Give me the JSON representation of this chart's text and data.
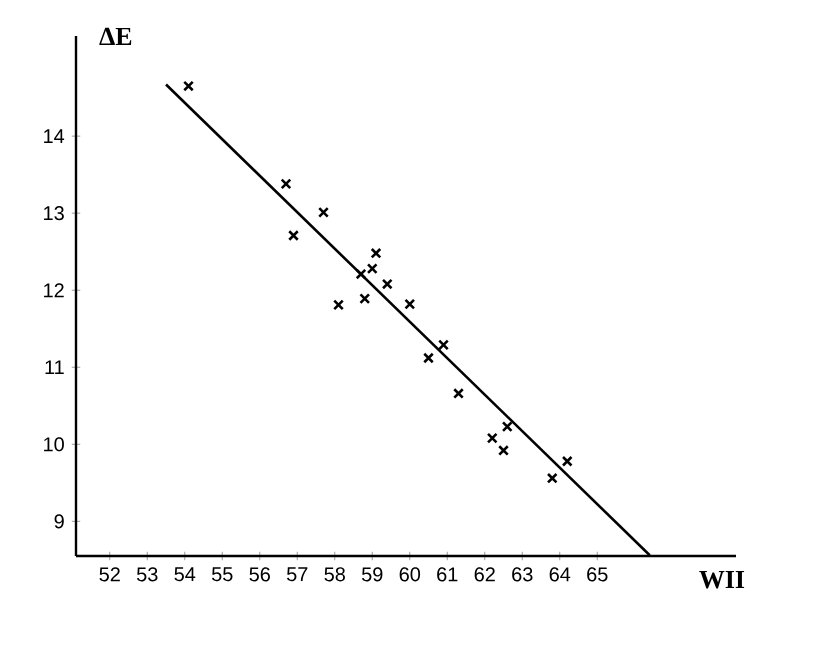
{
  "chart_data": {
    "type": "scatter",
    "xlabel": "WII",
    "ylabel": "ΔE",
    "xlim": [
      51.1,
      68.7
    ],
    "ylim": [
      8.55,
      15.3
    ],
    "xticks": [
      52,
      53,
      54,
      55,
      56,
      57,
      58,
      59,
      60,
      61,
      62,
      63,
      64,
      65
    ],
    "yticks": [
      9,
      10,
      11,
      12,
      13,
      14
    ],
    "marker": "cross",
    "series": [
      {
        "color": "#000000",
        "x": [
          54.1,
          56.7,
          56.9,
          57.7,
          58.1,
          58.8,
          58.7,
          59.0,
          59.1,
          59.4,
          60.0,
          60.9,
          60.5,
          61.3,
          62.6,
          62.2,
          62.5,
          64.2,
          63.8
        ],
        "values": [
          14.65,
          13.38,
          12.71,
          13.01,
          11.81,
          11.89,
          12.21,
          12.28,
          12.48,
          12.08,
          11.82,
          11.29,
          11.12,
          10.66,
          10.23,
          10.08,
          9.92,
          9.78,
          9.56
        ]
      },
      {
        "type": "line",
        "marker": "none",
        "color": "#000000",
        "x": [
          53.5,
          66.4
        ],
        "values": [
          14.67,
          8.56
        ]
      }
    ]
  }
}
